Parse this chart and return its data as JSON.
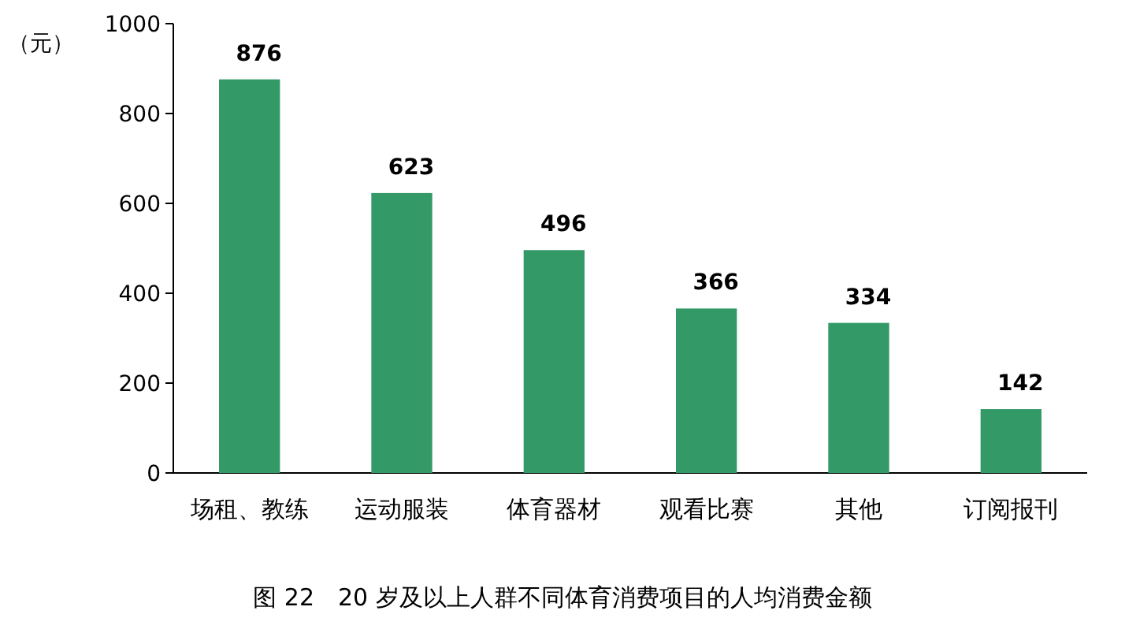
{
  "chart_data": {
    "type": "bar",
    "title": "图 22　20 岁及以上人群不同体育消费项目的人均消费金额",
    "ylabel": "（元）",
    "categories": [
      "场租、教练",
      "运动服装",
      "体育器材",
      "观看比赛",
      "其他",
      "订阅报刊"
    ],
    "values": [
      876,
      623,
      496,
      366,
      334,
      142
    ],
    "color": "#339966",
    "ylim": [
      0,
      1000
    ],
    "yticks": [
      0,
      200,
      400,
      600,
      800,
      1000
    ],
    "grid": false,
    "data_labels": true
  }
}
